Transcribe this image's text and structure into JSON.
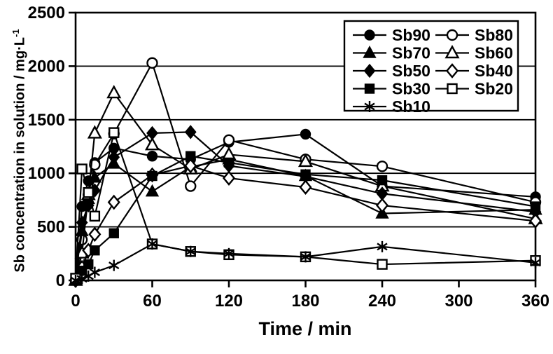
{
  "chart_data": {
    "type": "line",
    "title": "",
    "xlabel": "Time / min",
    "ylabel": "Sb concentration in solution / mg·L⁻¹",
    "ylabel_main": "Sb concentration in solution / mg·L",
    "ylabel_superscript": "-1",
    "xlim": [
      0,
      360
    ],
    "ylim": [
      0,
      2500
    ],
    "x_ticks": [
      0,
      60,
      120,
      180,
      240,
      300,
      360
    ],
    "y_ticks": [
      0,
      500,
      1000,
      1500,
      2000,
      2500
    ],
    "grid": "horizontal",
    "legend_position": "top-right-inside",
    "colors": {
      "line": "#000000",
      "background": "#ffffff",
      "open_marker_fill": "#ffffff"
    },
    "x": [
      0,
      5,
      10,
      15,
      30,
      60,
      90,
      120,
      180,
      240,
      360
    ],
    "series": [
      {
        "name": "Sb90",
        "marker": "circle",
        "fill": "filled",
        "values": [
          0,
          690,
          930,
          1100,
          1235,
          1160,
          1130,
          1290,
          1365,
          880,
          780
        ]
      },
      {
        "name": "Sb80",
        "marker": "circle",
        "fill": "open",
        "values": [
          0,
          380,
          800,
          1080,
          1370,
          2030,
          880,
          1310,
          1130,
          1065,
          730
        ]
      },
      {
        "name": "Sb70",
        "marker": "triangle",
        "fill": "filled",
        "values": [
          0,
          460,
          760,
          960,
          1090,
          830,
          1060,
          1130,
          975,
          625,
          660
        ]
      },
      {
        "name": "Sb60",
        "marker": "triangle",
        "fill": "open",
        "values": [
          0,
          255,
          800,
          1375,
          1750,
          1265,
          1040,
          1175,
          1110,
          880,
          575
        ]
      },
      {
        "name": "Sb50",
        "marker": "diamond",
        "fill": "filled",
        "values": [
          0,
          540,
          700,
          840,
          1150,
          1375,
          1385,
          1070,
          970,
          810,
          640
        ]
      },
      {
        "name": "Sb40",
        "marker": "diamond",
        "fill": "open",
        "values": [
          0,
          120,
          280,
          430,
          730,
          985,
          1070,
          955,
          870,
          700,
          555
        ]
      },
      {
        "name": "Sb30",
        "marker": "square",
        "fill": "filled",
        "values": [
          0,
          90,
          150,
          280,
          440,
          975,
          1160,
          1100,
          990,
          935,
          690
        ]
      },
      {
        "name": "Sb20",
        "marker": "square",
        "fill": "open",
        "values": [
          20,
          1040,
          820,
          600,
          1380,
          340,
          270,
          240,
          220,
          150,
          185
        ]
      },
      {
        "name": "Sb10",
        "marker": "asterisk",
        "fill": "open",
        "values": [
          0,
          15,
          40,
          75,
          140,
          340,
          270,
          250,
          220,
          315,
          165
        ]
      }
    ],
    "legend": [
      "Sb90",
      "Sb80",
      "Sb70",
      "Sb60",
      "Sb50",
      "Sb40",
      "Sb30",
      "Sb20",
      "Sb10"
    ]
  }
}
